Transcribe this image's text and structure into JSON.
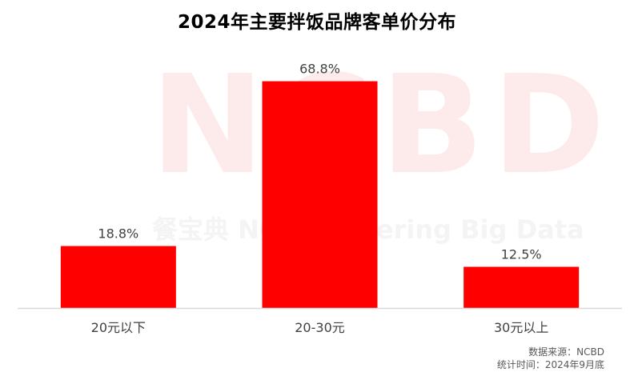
{
  "watermark": {
    "logo_text": "NCBD",
    "tagline": "餐宝典  NCBD Catering Big Data"
  },
  "chart_data": {
    "type": "bar",
    "title": "2024年主要拌饭品牌客单价分布",
    "categories": [
      "20元以下",
      "20-30元",
      "30元以上"
    ],
    "values": [
      18.8,
      68.8,
      12.5
    ],
    "value_labels": [
      "18.8%",
      "68.8%",
      "12.5%"
    ],
    "unit": "%",
    "ylim": [
      0,
      75
    ],
    "grid": false,
    "legend": "none",
    "bar_color": "#ff0000"
  },
  "notes": {
    "source": "数据来源：NCBD",
    "date": "统计时间：2024年9月底"
  },
  "colors": {
    "bar": "#ff0000",
    "axis": "#d9d9d9",
    "text": "#404040"
  }
}
